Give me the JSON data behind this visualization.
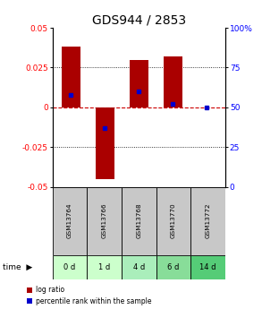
{
  "title": "GDS944 / 2853",
  "samples": [
    "GSM13764",
    "GSM13766",
    "GSM13768",
    "GSM13770",
    "GSM13772"
  ],
  "time_labels": [
    "0 d",
    "1 d",
    "4 d",
    "6 d",
    "14 d"
  ],
  "log_ratios": [
    0.038,
    -0.045,
    0.03,
    0.032,
    0.0
  ],
  "percentile_ranks": [
    0.58,
    0.37,
    0.6,
    0.52,
    0.5
  ],
  "ylim": [
    -0.05,
    0.05
  ],
  "yticks_left": [
    -0.05,
    -0.025,
    0,
    0.025,
    0.05
  ],
  "yticks_right": [
    0,
    25,
    50,
    75,
    100
  ],
  "bar_color": "#aa0000",
  "dot_color": "#0000cc",
  "grid_color": "#000000",
  "zero_line_color": "#cc0000",
  "background_color": "#ffffff",
  "plot_bg": "#ffffff",
  "sample_bg": "#c8c8c8",
  "time_bg_colors": [
    "#ccffcc",
    "#ccffcc",
    "#aaeebb",
    "#88dd99",
    "#55cc77"
  ],
  "title_fontsize": 10,
  "tick_fontsize": 6.5,
  "bar_width": 0.55
}
